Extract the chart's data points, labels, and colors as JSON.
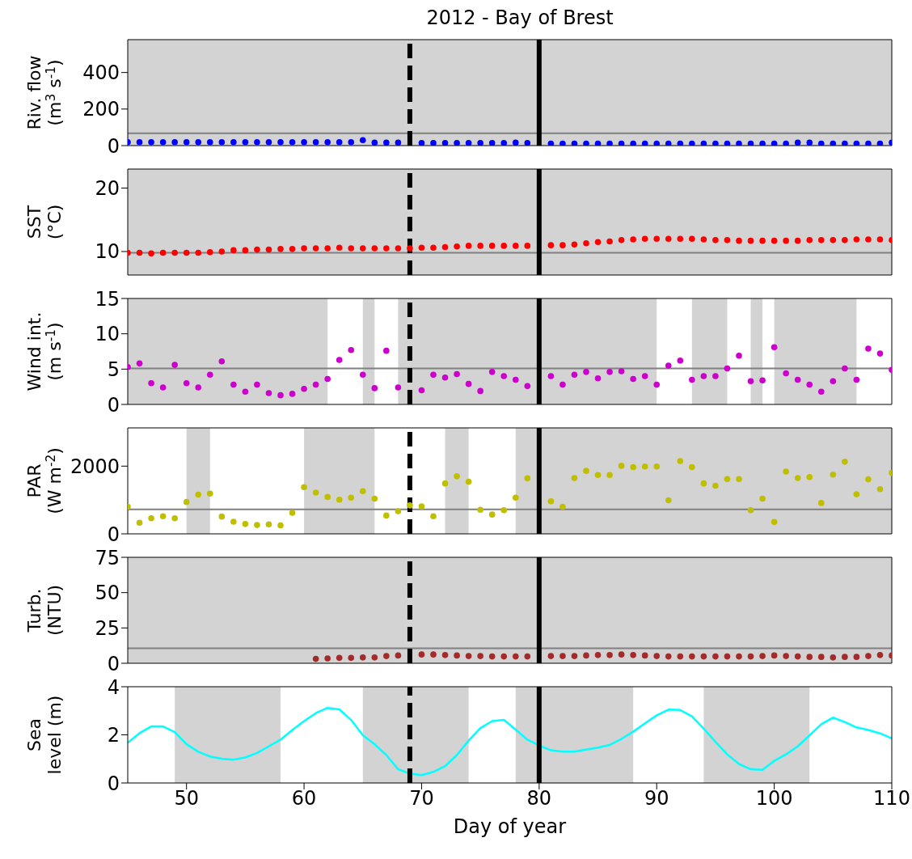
{
  "chart_data": [
    {
      "type": "scatter",
      "title": "2012 - Bay of Brest",
      "ylabel": "Riv. flow\n(m$^{3}$ s$^{-1}$)",
      "color": "#0000ff",
      "marker": "circle",
      "tick_labels": "y",
      "x": [
        45,
        46,
        47,
        48,
        49,
        50,
        51,
        52,
        53,
        54,
        55,
        56,
        57,
        58,
        59,
        60,
        61,
        62,
        63,
        64,
        65,
        66,
        67,
        68,
        69,
        70,
        71,
        72,
        73,
        74,
        75,
        76,
        77,
        78,
        79,
        80,
        81,
        82,
        83,
        84,
        85,
        86,
        87,
        88,
        89,
        90,
        91,
        92,
        93,
        94,
        95,
        96,
        97,
        98,
        99,
        100,
        101,
        102,
        103,
        104,
        105,
        106,
        107,
        108,
        109,
        110
      ],
      "values": [
        19,
        19,
        19,
        19,
        19,
        19,
        19,
        19,
        19,
        19,
        19,
        19,
        19,
        19,
        19,
        19,
        19,
        19,
        19,
        19,
        30,
        16,
        16,
        16,
        null,
        14,
        14,
        14,
        14,
        14,
        14,
        14,
        14,
        16,
        14,
        null,
        11,
        11,
        11,
        11,
        11,
        11,
        11,
        11,
        11,
        11,
        11,
        11,
        11,
        11,
        11,
        11,
        11,
        11,
        11,
        11,
        11,
        16,
        16,
        11,
        11,
        11,
        11,
        11,
        11,
        16
      ],
      "xlim": [
        45,
        110
      ],
      "ylim": [
        0,
        580
      ],
      "yticks": [
        0,
        200,
        400
      ],
      "bands": [
        {
          "axis": "x",
          "from": 45,
          "to": 110,
          "color": "#d3d3d3"
        }
      ],
      "ref_lines": [
        {
          "axis": "y",
          "value": 68,
          "color": "#808080",
          "line_style": "solid"
        },
        {
          "axis": "x",
          "value": 69,
          "color": "#000000",
          "line_style": "dashed"
        },
        {
          "axis": "x",
          "value": 80,
          "color": "#000000",
          "line_style": "solid"
        }
      ]
    },
    {
      "type": "scatter",
      "ylabel": "SST\n(°C)",
      "color": "#ff0000",
      "marker": "circle",
      "tick_labels": "y",
      "x": [
        45,
        46,
        47,
        48,
        49,
        50,
        51,
        52,
        53,
        54,
        55,
        56,
        57,
        58,
        59,
        60,
        61,
        62,
        63,
        64,
        65,
        66,
        67,
        68,
        69,
        70,
        71,
        72,
        73,
        74,
        75,
        76,
        77,
        78,
        79,
        80,
        81,
        82,
        83,
        84,
        85,
        86,
        87,
        88,
        89,
        90,
        91,
        92,
        93,
        94,
        95,
        96,
        97,
        98,
        99,
        100,
        101,
        102,
        103,
        104,
        105,
        106,
        107,
        108,
        109,
        110
      ],
      "values": [
        9.8,
        9.8,
        9.7,
        9.8,
        9.8,
        9.8,
        9.8,
        9.9,
        10.0,
        10.2,
        10.2,
        10.3,
        10.3,
        10.4,
        10.4,
        10.5,
        10.5,
        10.5,
        10.6,
        10.5,
        10.5,
        10.5,
        10.5,
        10.5,
        10.5,
        10.6,
        10.6,
        10.7,
        10.8,
        10.9,
        10.9,
        10.9,
        10.9,
        10.9,
        10.9,
        null,
        11.0,
        11.0,
        11.1,
        11.3,
        11.5,
        11.6,
        11.8,
        11.9,
        12.0,
        12.0,
        12.0,
        12.0,
        12.0,
        11.9,
        11.8,
        11.8,
        11.7,
        11.7,
        11.7,
        11.7,
        11.7,
        11.7,
        11.8,
        11.8,
        11.8,
        11.8,
        11.9,
        11.9,
        11.9,
        11.8
      ],
      "xlim": [
        45,
        110
      ],
      "ylim": [
        6.3,
        23
      ],
      "yticks": [
        10,
        20
      ],
      "bands": [
        {
          "axis": "x",
          "from": 45,
          "to": 110,
          "color": "#d3d3d3"
        }
      ],
      "ref_lines": [
        {
          "axis": "y",
          "value": 9.8,
          "color": "#808080",
          "line_style": "solid"
        },
        {
          "axis": "x",
          "value": 69,
          "color": "#000000",
          "line_style": "dashed"
        },
        {
          "axis": "x",
          "value": 80,
          "color": "#000000",
          "line_style": "solid"
        }
      ]
    },
    {
      "type": "scatter",
      "ylabel": "Wind int.\n(m s$^{-1}$)",
      "color": "#cc00cc",
      "marker": "circle",
      "tick_labels": "y",
      "x": [
        45,
        46,
        47,
        48,
        49,
        50,
        51,
        52,
        53,
        54,
        55,
        56,
        57,
        58,
        59,
        60,
        61,
        62,
        63,
        64,
        65,
        66,
        67,
        68,
        69,
        70,
        71,
        72,
        73,
        74,
        75,
        76,
        77,
        78,
        79,
        80,
        81,
        82,
        83,
        84,
        85,
        86,
        87,
        88,
        89,
        90,
        91,
        92,
        93,
        94,
        95,
        96,
        97,
        98,
        99,
        100,
        101,
        102,
        103,
        104,
        105,
        106,
        107,
        108,
        109,
        110
      ],
      "values": [
        5.3,
        5.8,
        3.0,
        2.4,
        5.6,
        3.0,
        2.4,
        4.2,
        6.1,
        2.8,
        1.8,
        2.8,
        1.6,
        1.3,
        1.5,
        2.2,
        2.8,
        3.6,
        6.3,
        7.7,
        4.2,
        2.3,
        7.6,
        2.4,
        null,
        2.0,
        4.2,
        3.8,
        4.3,
        2.9,
        1.9,
        4.6,
        4.0,
        3.5,
        2.6,
        null,
        4.0,
        2.8,
        4.2,
        4.6,
        3.7,
        4.6,
        4.7,
        3.6,
        4.0,
        2.8,
        5.5,
        6.2,
        3.5,
        4.0,
        4.0,
        5.1,
        6.9,
        3.3,
        3.4,
        8.1,
        4.4,
        3.5,
        2.8,
        1.8,
        3.3,
        5.1,
        3.5,
        7.9,
        7.2,
        4.9
      ],
      "xlim": [
        45,
        110
      ],
      "ylim": [
        0,
        15
      ],
      "yticks": [
        0,
        5,
        10,
        15
      ],
      "bands": [
        {
          "axis": "x",
          "from": 45,
          "to": 62,
          "color": "#d3d3d3"
        },
        {
          "axis": "x",
          "from": 65,
          "to": 66,
          "color": "#d3d3d3"
        },
        {
          "axis": "x",
          "from": 68,
          "to": 90,
          "color": "#d3d3d3"
        },
        {
          "axis": "x",
          "from": 93,
          "to": 96,
          "color": "#d3d3d3"
        },
        {
          "axis": "x",
          "from": 98,
          "to": 99,
          "color": "#d3d3d3"
        },
        {
          "axis": "x",
          "from": 100,
          "to": 107,
          "color": "#d3d3d3"
        }
      ],
      "ref_lines": [
        {
          "axis": "y",
          "value": 5.1,
          "color": "#808080",
          "line_style": "solid"
        },
        {
          "axis": "x",
          "value": 69,
          "color": "#000000",
          "line_style": "dashed"
        },
        {
          "axis": "x",
          "value": 80,
          "color": "#000000",
          "line_style": "solid"
        }
      ]
    },
    {
      "type": "scatter",
      "ylabel": "PAR\n(W m$^{-2}$)",
      "color": "#bfbf00",
      "marker": "circle",
      "tick_labels": "y",
      "x": [
        45,
        46,
        47,
        48,
        49,
        50,
        51,
        52,
        53,
        54,
        55,
        56,
        57,
        58,
        59,
        60,
        61,
        62,
        63,
        64,
        65,
        66,
        67,
        68,
        69,
        70,
        71,
        72,
        73,
        74,
        75,
        76,
        77,
        78,
        79,
        80,
        81,
        82,
        83,
        84,
        85,
        86,
        87,
        88,
        89,
        90,
        91,
        92,
        93,
        94,
        95,
        96,
        97,
        98,
        99,
        100,
        101,
        102,
        103,
        104,
        105,
        106,
        107,
        108,
        109,
        110
      ],
      "values": [
        800,
        330,
        460,
        520,
        460,
        940,
        1160,
        1190,
        510,
        360,
        290,
        260,
        280,
        250,
        620,
        1380,
        1220,
        1090,
        1010,
        1070,
        1260,
        1040,
        540,
        670,
        840,
        810,
        520,
        1490,
        1700,
        1540,
        710,
        570,
        700,
        1070,
        1640,
        null,
        960,
        800,
        1650,
        1860,
        1740,
        1740,
        2010,
        1970,
        1990,
        1990,
        990,
        2150,
        1970,
        1490,
        1420,
        1620,
        1620,
        700,
        1040,
        350,
        1840,
        1650,
        1680,
        910,
        1750,
        2130,
        1170,
        1610,
        1320,
        1800
      ],
      "xlim": [
        45,
        110
      ],
      "ylim": [
        0,
        3130
      ],
      "yticks": [
        0,
        2000
      ],
      "bands": [
        {
          "axis": "x",
          "from": 50,
          "to": 52,
          "color": "#d3d3d3"
        },
        {
          "axis": "x",
          "from": 60,
          "to": 66,
          "color": "#d3d3d3"
        },
        {
          "axis": "x",
          "from": 72,
          "to": 74,
          "color": "#d3d3d3"
        },
        {
          "axis": "x",
          "from": 78,
          "to": 110,
          "color": "#d3d3d3"
        }
      ],
      "ref_lines": [
        {
          "axis": "y",
          "value": 725,
          "color": "#808080",
          "line_style": "solid"
        },
        {
          "axis": "x",
          "value": 69,
          "color": "#000000",
          "line_style": "dashed"
        },
        {
          "axis": "x",
          "value": 80,
          "color": "#000000",
          "line_style": "solid"
        }
      ]
    },
    {
      "type": "scatter",
      "ylabel": "Turb.\n(NTU)",
      "color": "#a52a2a",
      "marker": "circle",
      "tick_labels": "y",
      "x": [
        61,
        62,
        63,
        64,
        65,
        66,
        67,
        68,
        69,
        70,
        71,
        72,
        73,
        74,
        75,
        76,
        77,
        78,
        79,
        80,
        81,
        82,
        83,
        84,
        85,
        86,
        87,
        88,
        89,
        90,
        91,
        92,
        93,
        94,
        95,
        96,
        97,
        98,
        99,
        100,
        101,
        102,
        103,
        104,
        105,
        106,
        107,
        108,
        109,
        110
      ],
      "values": [
        3.1,
        3.4,
        3.8,
        3.8,
        4.1,
        4.1,
        5.1,
        5.5,
        null,
        6.2,
        6.2,
        5.8,
        5.5,
        5.1,
        5.1,
        4.8,
        4.8,
        4.8,
        4.8,
        null,
        5.1,
        5.1,
        5.1,
        5.5,
        5.8,
        5.8,
        6.2,
        5.8,
        5.5,
        5.1,
        4.8,
        4.8,
        4.8,
        4.8,
        4.8,
        4.8,
        4.8,
        4.8,
        5.1,
        5.5,
        5.1,
        4.8,
        4.5,
        4.5,
        4.1,
        4.5,
        4.5,
        5.1,
        5.8,
        5.5
      ],
      "xlim": [
        45,
        110
      ],
      "ylim": [
        0,
        75
      ],
      "yticks": [
        0,
        25,
        50,
        75
      ],
      "bands": [
        {
          "axis": "x",
          "from": 45,
          "to": 110,
          "color": "#d3d3d3"
        }
      ],
      "ref_lines": [
        {
          "axis": "y",
          "value": 10.6,
          "color": "#808080",
          "line_style": "solid"
        },
        {
          "axis": "x",
          "value": 69,
          "color": "#000000",
          "line_style": "dashed"
        },
        {
          "axis": "x",
          "value": 80,
          "color": "#000000",
          "line_style": "solid"
        }
      ]
    },
    {
      "type": "line",
      "ylabel": "Sea\nlevel (m)",
      "xlabel": "Day of year",
      "color": "#00ffff",
      "line_style": "solid",
      "x": [
        45,
        46,
        47,
        48,
        49,
        50,
        51,
        52,
        53,
        54,
        55,
        56,
        57,
        58,
        59,
        60,
        61,
        62,
        63,
        64,
        65,
        66,
        67,
        68,
        69,
        70,
        71,
        72,
        73,
        74,
        75,
        76,
        77,
        78,
        79,
        80,
        81,
        82,
        83,
        84,
        85,
        86,
        87,
        88,
        89,
        90,
        91,
        92,
        93,
        94,
        95,
        96,
        97,
        98,
        99,
        100,
        101,
        102,
        103,
        104,
        105,
        106,
        107,
        108,
        109,
        110
      ],
      "values": [
        1.67,
        2.07,
        2.35,
        2.35,
        2.11,
        1.61,
        1.3,
        1.1,
        1.01,
        0.97,
        1.06,
        1.25,
        1.52,
        1.8,
        2.2,
        2.57,
        2.9,
        3.12,
        3.06,
        2.62,
        1.98,
        1.61,
        1.16,
        0.57,
        0.39,
        0.33,
        0.46,
        0.7,
        1.16,
        1.76,
        2.28,
        2.57,
        2.62,
        2.22,
        1.8,
        1.56,
        1.36,
        1.3,
        1.3,
        1.39,
        1.47,
        1.58,
        1.83,
        2.13,
        2.48,
        2.81,
        3.05,
        3.03,
        2.77,
        2.26,
        1.71,
        1.19,
        0.79,
        0.57,
        0.55,
        0.92,
        1.19,
        1.52,
        1.98,
        2.44,
        2.72,
        2.53,
        2.31,
        2.2,
        2.06,
        1.85
      ],
      "xlim": [
        45,
        110
      ],
      "xticks": [
        50,
        60,
        70,
        80,
        90,
        100,
        110
      ],
      "ylim": [
        0,
        4
      ],
      "yticks": [
        0,
        2,
        4
      ],
      "bands": [
        {
          "axis": "x",
          "from": 49,
          "to": 58,
          "color": "#d3d3d3"
        },
        {
          "axis": "x",
          "from": 65,
          "to": 74,
          "color": "#d3d3d3"
        },
        {
          "axis": "x",
          "from": 78,
          "to": 88,
          "color": "#d3d3d3"
        },
        {
          "axis": "x",
          "from": 94,
          "to": 103,
          "color": "#d3d3d3"
        }
      ],
      "ref_lines": [
        {
          "axis": "x",
          "value": 69,
          "color": "#000000",
          "line_style": "dashed"
        },
        {
          "axis": "x",
          "value": 80,
          "color": "#000000",
          "line_style": "solid"
        }
      ]
    }
  ]
}
